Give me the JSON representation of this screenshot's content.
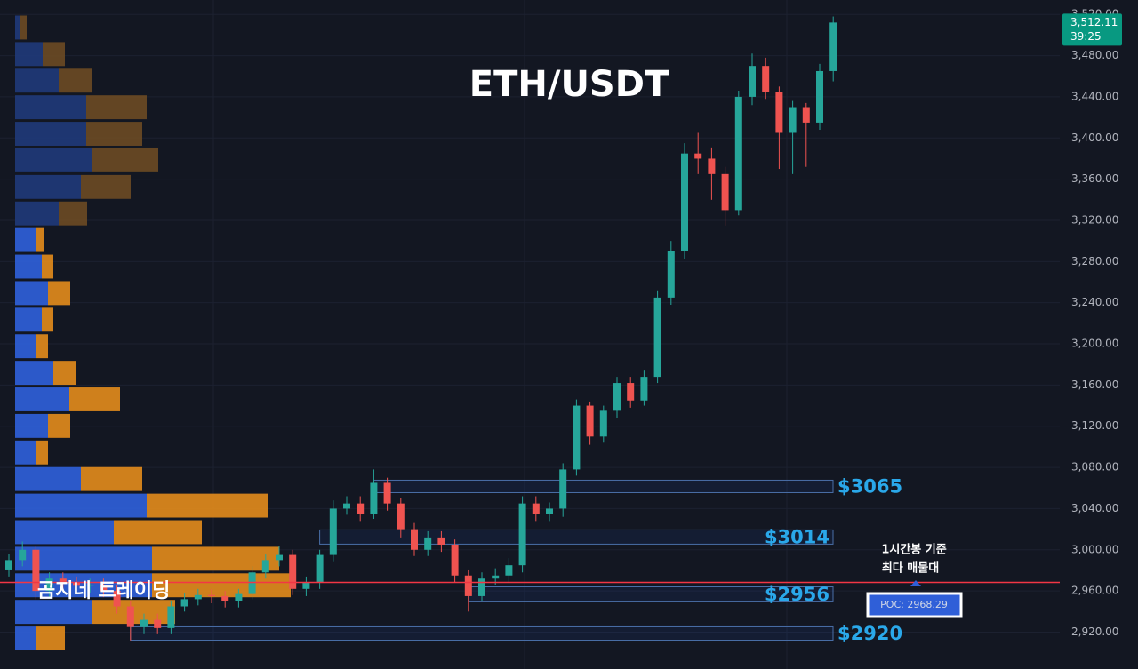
{
  "chart_data": {
    "type": "candlestick",
    "title": "ETH/USDT",
    "watermark": "곰지네 트레이딩",
    "ylim": [
      2901,
      3520.2
    ],
    "yticks": [
      {
        "value": 2920,
        "label": "2,920.00"
      },
      {
        "value": 2960,
        "label": "2,960.00"
      },
      {
        "value": 3000,
        "label": "3,000.00"
      },
      {
        "value": 3040,
        "label": "3,040.00"
      },
      {
        "value": 3080,
        "label": "3,080.00"
      },
      {
        "value": 3120,
        "label": "3,120.00"
      },
      {
        "value": 3160,
        "label": "3,160.00"
      },
      {
        "value": 3200,
        "label": "3,200.00"
      },
      {
        "value": 3240,
        "label": "3,240.00"
      },
      {
        "value": 3280,
        "label": "3,280.00"
      },
      {
        "value": 3320,
        "label": "3,320.00"
      },
      {
        "value": 3360,
        "label": "3,360.00"
      },
      {
        "value": 3400,
        "label": "3,400.00"
      },
      {
        "value": 3440,
        "label": "3,440.00"
      },
      {
        "value": 3480,
        "label": "3,480.00"
      },
      {
        "value": 3520,
        "label": "3,520.00"
      }
    ],
    "grid": true,
    "up_color": "#26a69a",
    "down_color": "#ef5350",
    "open": [
      2980,
      2990,
      3000,
      2960,
      2972,
      2968,
      2965,
      2966,
      2960,
      2945,
      2925,
      2932,
      2924,
      2945,
      2952,
      2956,
      2955,
      2950,
      2957,
      2978,
      2990,
      2995,
      2962,
      2968,
      2995,
      3040,
      3045,
      3035,
      3065,
      3045,
      3020,
      3000,
      3012,
      3005,
      2975,
      2955,
      2972,
      2975,
      2985,
      3045,
      3035,
      3040,
      3078,
      3140,
      3110,
      3135,
      3162,
      3145,
      3168,
      3245,
      3290,
      3385,
      3380,
      3365,
      3330,
      3440,
      3470,
      3445,
      3405,
      3430,
      3415,
      3465
    ],
    "high": [
      2996,
      3008,
      3004,
      2978,
      2978,
      2974,
      2972,
      2972,
      2966,
      2950,
      2938,
      2938,
      2950,
      2958,
      2962,
      2962,
      2960,
      2962,
      2984,
      2996,
      3004,
      3000,
      2974,
      3000,
      3048,
      3052,
      3052,
      3078,
      3070,
      3050,
      3026,
      3018,
      3018,
      3010,
      2980,
      2978,
      2982,
      2992,
      3052,
      3052,
      3046,
      3084,
      3146,
      3144,
      3140,
      3168,
      3168,
      3174,
      3252,
      3300,
      3395,
      3405,
      3390,
      3372,
      3446,
      3482,
      3478,
      3450,
      3436,
      3434,
      3472,
      3518
    ],
    "low": [
      2974,
      2984,
      2952,
      2954,
      2962,
      2958,
      2958,
      2954,
      2938,
      2912,
      2918,
      2918,
      2918,
      2940,
      2946,
      2948,
      2944,
      2944,
      2952,
      2972,
      2984,
      2956,
      2955,
      2962,
      2988,
      3034,
      3028,
      3030,
      3038,
      3012,
      2994,
      2994,
      2998,
      2968,
      2940,
      2950,
      2966,
      2968,
      2978,
      3028,
      3028,
      3032,
      3072,
      3102,
      3104,
      3128,
      3138,
      3140,
      3162,
      3238,
      3282,
      3365,
      3340,
      3315,
      3325,
      3432,
      3438,
      3370,
      3365,
      3372,
      3408,
      3455
    ],
    "close": [
      2990,
      3000,
      2960,
      2972,
      2968,
      2965,
      2966,
      2960,
      2945,
      2925,
      2932,
      2924,
      2945,
      2952,
      2956,
      2955,
      2950,
      2957,
      2978,
      2990,
      2995,
      2962,
      2968,
      2995,
      3040,
      3045,
      3035,
      3065,
      3045,
      3020,
      3000,
      3012,
      3005,
      2975,
      2955,
      2972,
      2975,
      2985,
      3045,
      3035,
      3040,
      3078,
      3140,
      3110,
      3135,
      3162,
      3145,
      3168,
      3245,
      3290,
      3385,
      3380,
      3365,
      3330,
      3440,
      3470,
      3445,
      3405,
      3430,
      3415,
      3465,
      3512.11
    ],
    "last_price": {
      "value": 3512.11,
      "label": "3,512.11"
    },
    "countdown": "39:25",
    "volume_profile": {
      "bins": [
        2901,
        2926.8,
        2952.6,
        2978.4,
        3004.2,
        3030,
        3055.8,
        3081.6,
        3107.4,
        3133.2,
        3159,
        3184.8,
        3210.6,
        3236.4,
        3262.2,
        3288,
        3313.8,
        3339.6,
        3365.4,
        3391.2,
        3417,
        3442.8,
        3468.6,
        3494.4,
        3520.2
      ],
      "value_area_high": 3313.8,
      "series": [
        {
          "color": "#2f5fd8",
          "dim_color": "#1f3a78",
          "values": [
            24,
            86,
            154,
            154,
            111,
            148,
            74,
            24,
            37,
            61,
            43,
            24,
            30,
            37,
            30,
            24,
            49,
            74,
            86,
            80,
            80,
            49,
            31,
            6
          ]
        },
        {
          "color": "#e08a1c",
          "dim_color": "#6a4a24",
          "values": [
            32,
            94,
            156,
            143,
            99,
            137,
            69,
            13,
            25,
            57,
            26,
            13,
            13,
            25,
            13,
            8,
            32,
            56,
            75,
            63,
            68,
            38,
            25,
            7
          ]
        }
      ]
    },
    "zones": [
      {
        "label": "$3065",
        "low": 3055.5,
        "high": 3067.6,
        "start": 27
      },
      {
        "label": "$3014",
        "low": 3005.5,
        "high": 3019.3,
        "start": 23
      },
      {
        "label": "$2956",
        "low": 2949.4,
        "high": 2964,
        "start": 34
      },
      {
        "label": "$2920",
        "low": 2912.2,
        "high": 2925.2,
        "start": 9
      }
    ],
    "poc": {
      "value": 2968.29,
      "label": "POC: 2968.29",
      "color": "#f23645"
    },
    "annotation": [
      "1시간봉 기준",
      "최다 매물대"
    ]
  }
}
